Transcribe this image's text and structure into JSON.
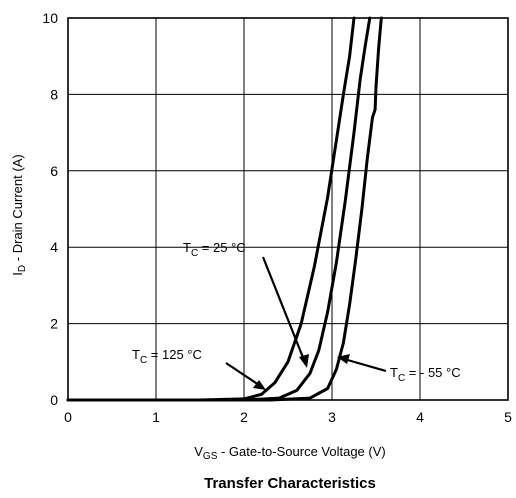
{
  "chart_data": {
    "type": "line",
    "title": "Transfer Characteristics",
    "xlabel": {
      "main": "V",
      "sub": "GS",
      "rest": " - Gate-to-Source Voltage (V)"
    },
    "ylabel": {
      "main": "I",
      "sub": "D",
      "rest": " - Drain Current (A)"
    },
    "xlim": [
      0,
      5
    ],
    "ylim": [
      0,
      10
    ],
    "xticks": [
      "0",
      "1",
      "2",
      "3",
      "4",
      "5"
    ],
    "yticks": [
      "0",
      "2",
      "4",
      "6",
      "8",
      "10"
    ],
    "grid": true,
    "series": [
      {
        "name": "T_C = 125 °C",
        "label": {
          "main": "T",
          "sub": "C",
          "rest": " = 125 °C"
        },
        "points": [
          [
            0,
            0
          ],
          [
            1.5,
            0
          ],
          [
            2.0,
            0.03
          ],
          [
            2.2,
            0.15
          ],
          [
            2.35,
            0.45
          ],
          [
            2.5,
            1.0
          ],
          [
            2.65,
            2.0
          ],
          [
            2.8,
            3.5
          ],
          [
            2.95,
            5.3
          ],
          [
            3.05,
            6.8
          ],
          [
            3.13,
            8.0
          ],
          [
            3.2,
            9.0
          ],
          [
            3.25,
            10
          ]
        ]
      },
      {
        "name": "T_C = 25 °C",
        "label": {
          "main": "T",
          "sub": "C",
          "rest": " = 25 °C"
        },
        "points": [
          [
            0,
            0
          ],
          [
            2.0,
            0
          ],
          [
            2.4,
            0.05
          ],
          [
            2.6,
            0.25
          ],
          [
            2.75,
            0.7
          ],
          [
            2.85,
            1.3
          ],
          [
            2.95,
            2.3
          ],
          [
            3.05,
            3.6
          ],
          [
            3.15,
            5.2
          ],
          [
            3.25,
            7.0
          ],
          [
            3.32,
            8.4
          ],
          [
            3.38,
            9.3
          ],
          [
            3.43,
            10
          ]
        ]
      },
      {
        "name": "T_C = - 55 °C",
        "label": {
          "main": "T",
          "sub": "C",
          "rest": " = - 55 °C"
        },
        "points": [
          [
            0,
            0
          ],
          [
            2.3,
            0
          ],
          [
            2.75,
            0.05
          ],
          [
            2.95,
            0.3
          ],
          [
            3.05,
            0.8
          ],
          [
            3.13,
            1.5
          ],
          [
            3.2,
            2.5
          ],
          [
            3.27,
            3.7
          ],
          [
            3.34,
            5.0
          ],
          [
            3.4,
            6.3
          ],
          [
            3.46,
            7.4
          ],
          [
            3.49,
            7.6
          ],
          [
            3.5,
            8.2
          ],
          [
            3.53,
            9.2
          ],
          [
            3.56,
            10
          ]
        ]
      }
    ]
  }
}
